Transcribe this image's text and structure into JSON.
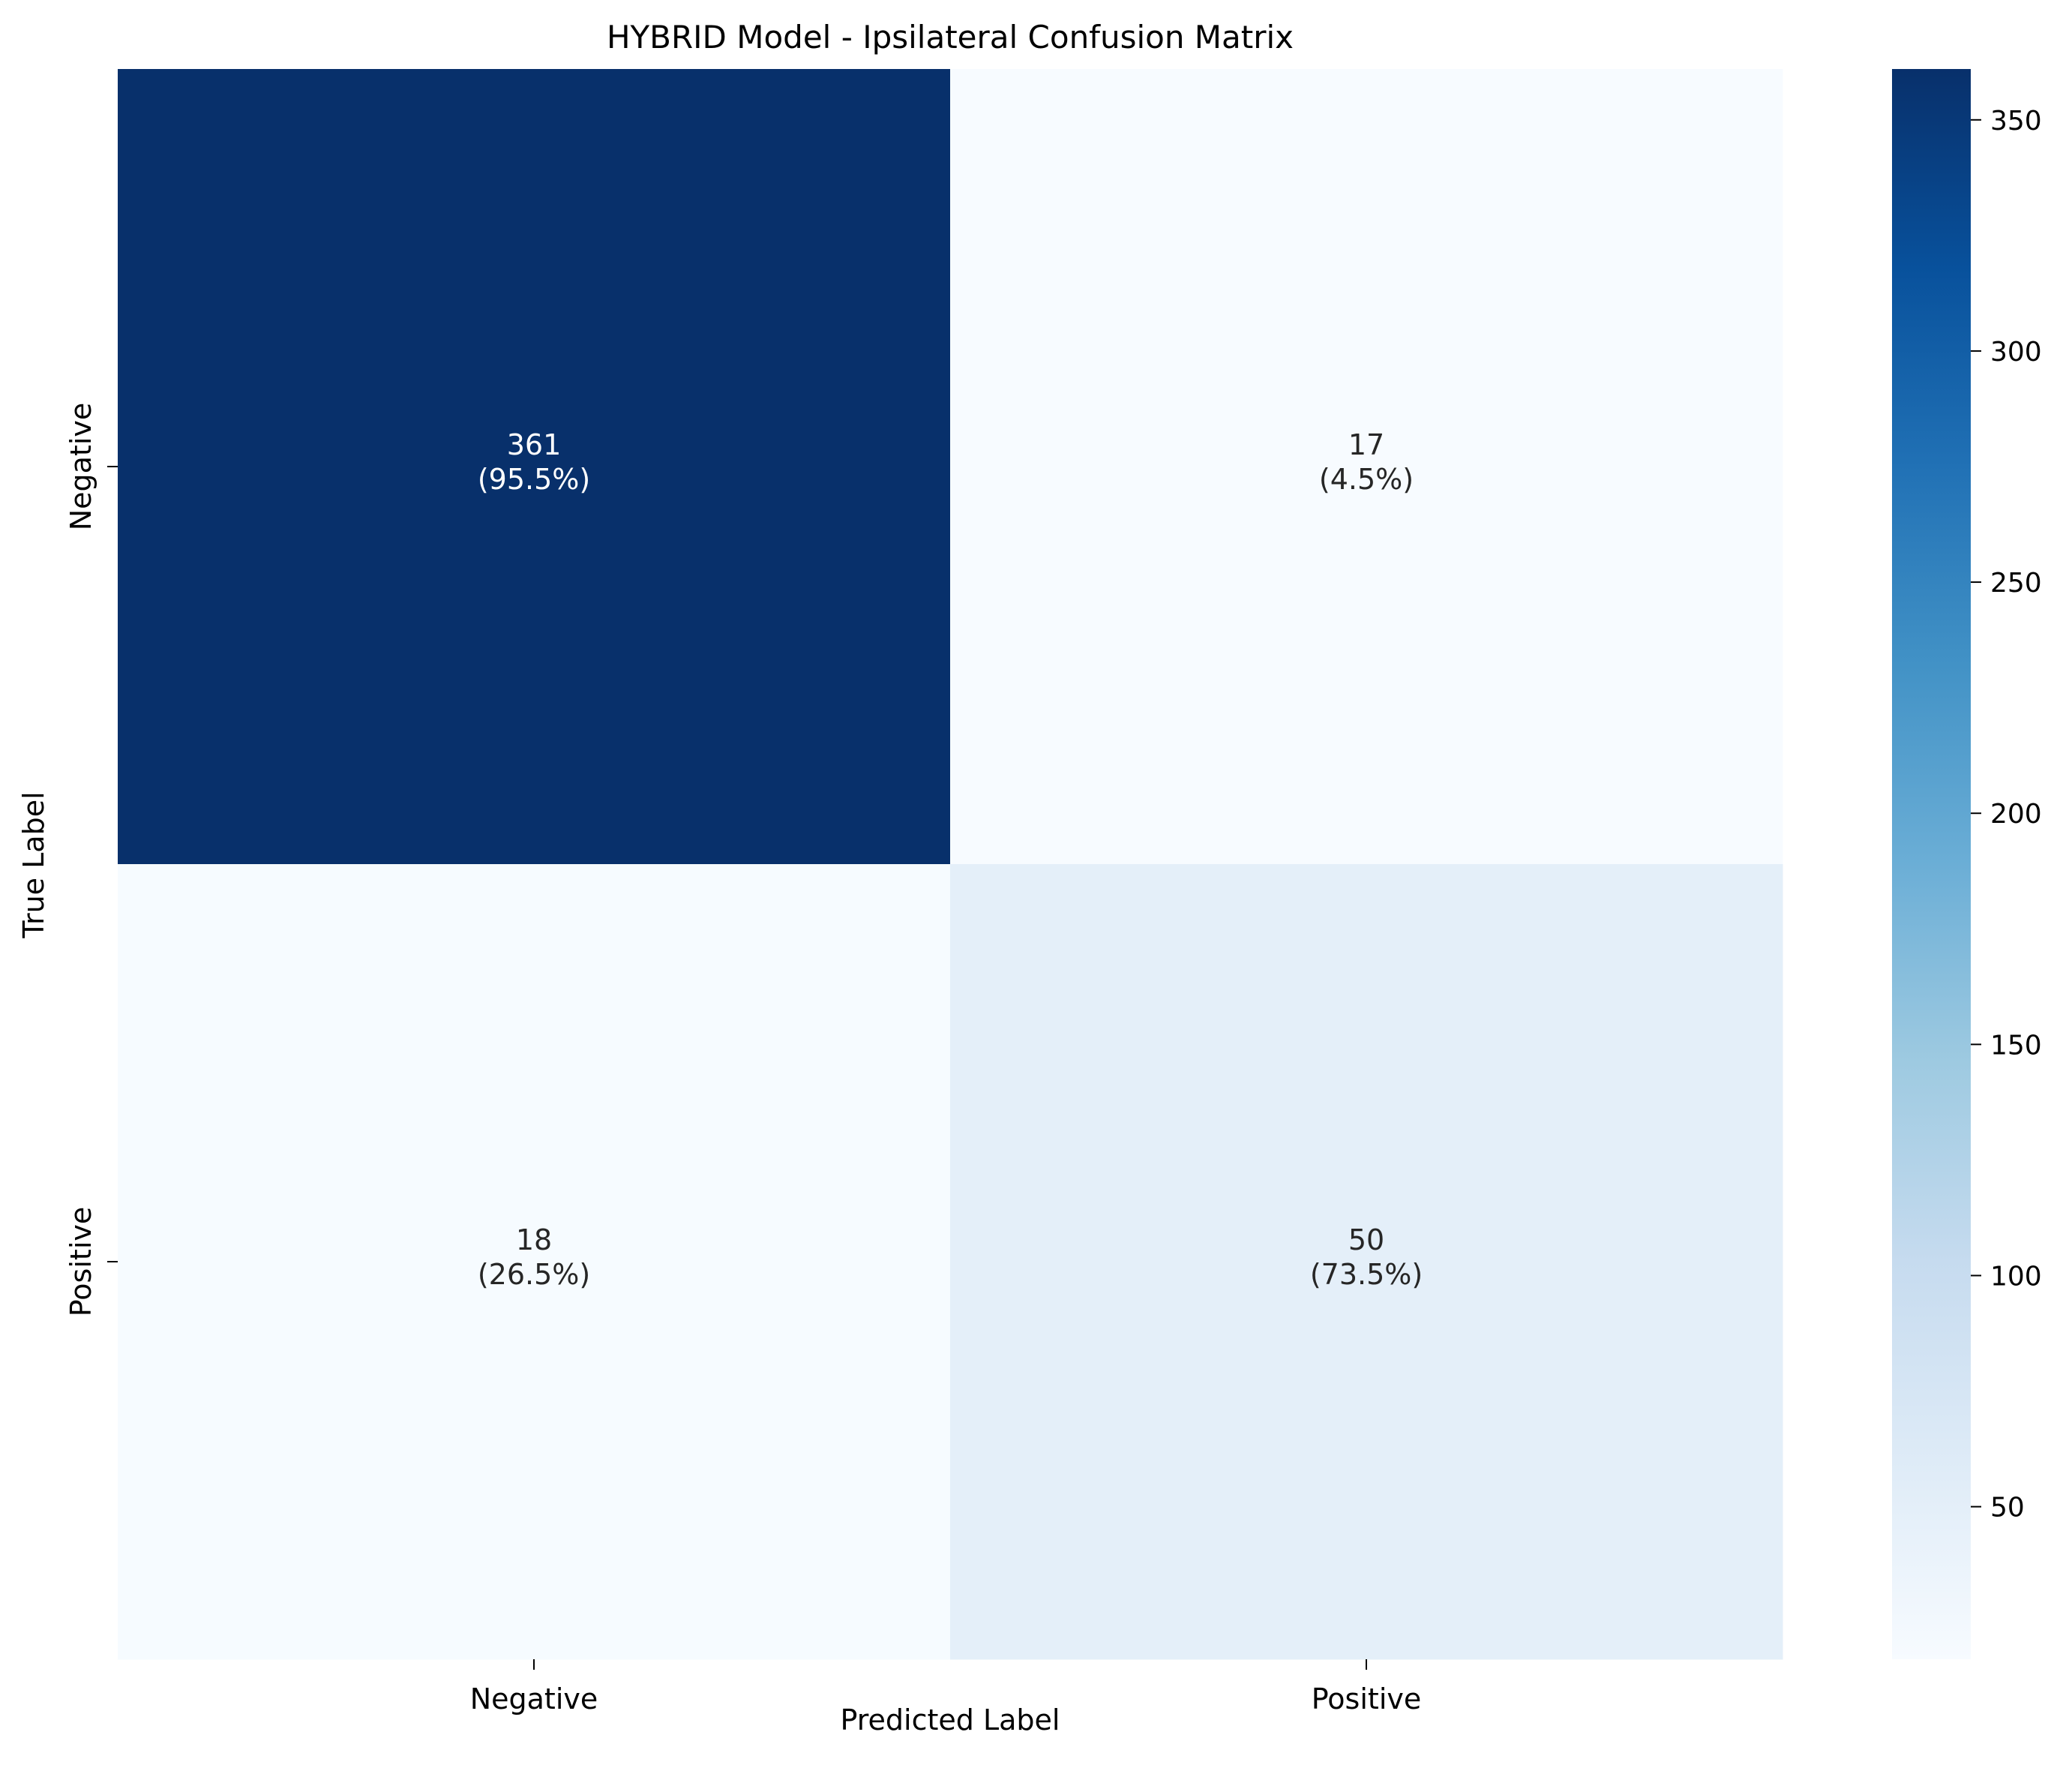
{
  "chart_data": {
    "type": "heatmap",
    "title": "HYBRID Model - Ipsilateral Confusion Matrix",
    "xlabel": "Predicted Label",
    "ylabel": "True Label",
    "x_categories": [
      "Negative",
      "Positive"
    ],
    "y_categories": [
      "Negative",
      "Positive"
    ],
    "values": [
      [
        361,
        17
      ],
      [
        18,
        50
      ]
    ],
    "annotations": [
      [
        "(95.5%)",
        "(4.5%)"
      ],
      [
        "(26.5%)",
        "(73.5%)"
      ]
    ],
    "colormap": "Blues",
    "colorbar": {
      "range": [
        17,
        361
      ],
      "ticks": [
        50,
        100,
        150,
        200,
        250,
        300,
        350
      ]
    },
    "colors": {
      "low": "#f7fbff",
      "high": "#08306b",
      "text_on_dark": "#ffffff",
      "text_on_light": "#262626"
    },
    "grid": false
  }
}
